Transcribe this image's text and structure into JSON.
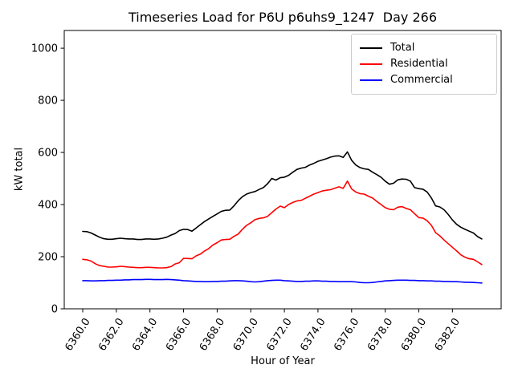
{
  "title": "Timeseries Load for P6U p6uhs9_1247  Day 266",
  "xlabel": "Hour of Year",
  "ylabel": "kW total",
  "legend": [
    {
      "label": "Total",
      "color": "#000000"
    },
    {
      "label": "Residential",
      "color": "#ff0000"
    },
    {
      "label": "Commercial",
      "color": "#0000ff"
    }
  ],
  "colors": {
    "spine": "#000000",
    "background": "#ffffff",
    "legend_border": "#cccccc"
  },
  "chart_data": {
    "type": "line",
    "title": "Timeseries Load for P6U p6uhs9_1247  Day 266",
    "xlabel": "Hour of Year",
    "ylabel": "kW total",
    "legend_position": "upper right",
    "grid": false,
    "xlim": [
      6358.9,
      6384.9
    ],
    "ylim": [
      0,
      1068
    ],
    "x_ticks": [
      6360,
      6362,
      6364,
      6366,
      6368,
      6370,
      6372,
      6374,
      6376,
      6378,
      6380,
      6382
    ],
    "x_tick_labels": [
      "6360.0",
      "6362.0",
      "6364.0",
      "6366.0",
      "6368.0",
      "6370.0",
      "6372.0",
      "6374.0",
      "6376.0",
      "6378.0",
      "6380.0",
      "6382.0"
    ],
    "y_ticks": [
      0,
      200,
      400,
      600,
      800,
      1000
    ],
    "y_tick_labels": [
      "0",
      "200",
      "400",
      "600",
      "800",
      "1000"
    ],
    "x_start": 6360.0,
    "x_step": 0.25,
    "series": [
      {
        "name": "Total",
        "color": "#000000",
        "values": [
          297,
          296,
          291,
          283,
          275,
          269,
          267,
          267,
          269,
          271,
          269,
          268,
          268,
          266,
          266,
          268,
          268,
          267,
          268,
          271,
          275,
          283,
          289,
          300,
          305,
          304,
          298,
          310,
          323,
          335,
          345,
          355,
          364,
          374,
          378,
          379,
          395,
          415,
          430,
          440,
          446,
          450,
          458,
          465,
          480,
          500,
          494,
          503,
          505,
          512,
          524,
          535,
          540,
          543,
          552,
          558,
          566,
          571,
          576,
          582,
          586,
          587,
          581,
          602,
          570,
          552,
          542,
          537,
          535,
          524,
          515,
          505,
          490,
          478,
          482,
          495,
          498,
          497,
          490,
          465,
          461,
          459,
          448,
          425,
          395,
          391,
          380,
          362,
          341,
          324,
          313,
          305,
          298,
          291,
          277,
          268
        ]
      },
      {
        "name": "Residential",
        "color": "#ff0000",
        "values": [
          190,
          188,
          183,
          173,
          166,
          163,
          160,
          160,
          161,
          163,
          162,
          160,
          159,
          158,
          158,
          159,
          159,
          158,
          157,
          157,
          158,
          162,
          172,
          177,
          194,
          193,
          192,
          203,
          210,
          222,
          231,
          245,
          254,
          264,
          266,
          267,
          278,
          287,
          305,
          320,
          330,
          342,
          347,
          349,
          355,
          369,
          383,
          394,
          388,
          400,
          408,
          414,
          416,
          424,
          432,
          440,
          446,
          452,
          455,
          457,
          463,
          468,
          462,
          490,
          460,
          448,
          442,
          440,
          432,
          425,
          412,
          400,
          388,
          382,
          380,
          390,
          392,
          385,
          380,
          365,
          350,
          348,
          338,
          320,
          292,
          280,
          264,
          250,
          236,
          222,
          207,
          198,
          192,
          190,
          180,
          170
        ]
      },
      {
        "name": "Commercial",
        "color": "#0000ff",
        "values": [
          108,
          108,
          107,
          107,
          108,
          108,
          109,
          109,
          110,
          110,
          111,
          111,
          112,
          112,
          112,
          113,
          113,
          112,
          112,
          112,
          113,
          112,
          111,
          110,
          108,
          107,
          106,
          105,
          105,
          104,
          104,
          105,
          105,
          106,
          106,
          107,
          108,
          108,
          107,
          106,
          104,
          103,
          104,
          106,
          108,
          109,
          110,
          110,
          108,
          107,
          106,
          105,
          105,
          106,
          106,
          107,
          107,
          106,
          106,
          105,
          105,
          104,
          104,
          104,
          104,
          103,
          101,
          100,
          100,
          101,
          103,
          105,
          107,
          108,
          109,
          110,
          110,
          110,
          109,
          109,
          108,
          108,
          107,
          107,
          106,
          106,
          105,
          105,
          104,
          104,
          103,
          102,
          102,
          101,
          100,
          99
        ]
      }
    ]
  }
}
